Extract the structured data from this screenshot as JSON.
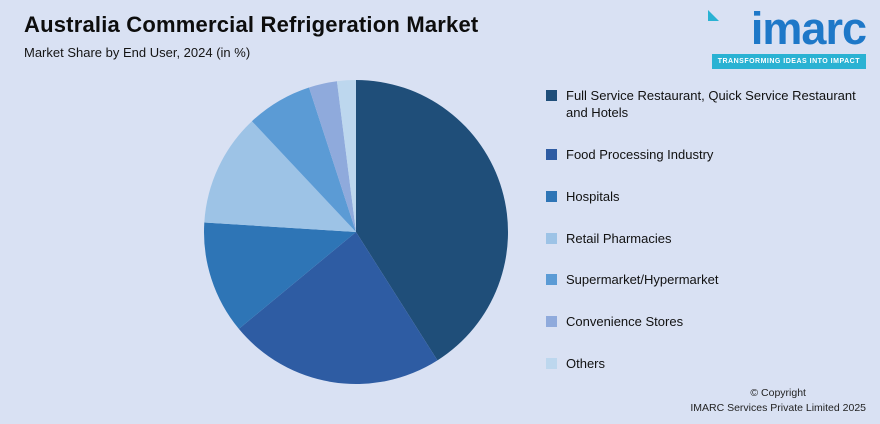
{
  "page": {
    "background": "#d9e1f3"
  },
  "header": {
    "title": "Australia Commercial Refrigeration Market",
    "subtitle": "Market Share by End User, 2024 (in %)"
  },
  "brand": {
    "name": "imarc",
    "tagline": "TRANSFORMING IDEAS INTO IMPACT",
    "text_color": "#1e78c8",
    "accent_color": "#2ab2d3"
  },
  "chart_data": {
    "type": "pie",
    "title": "Australia Commercial Refrigeration Market",
    "subtitle": "Market Share by End User, 2024 (in %)",
    "unit": "%",
    "legend_position": "right",
    "start_angle_deg": 0,
    "direction": "clockwise",
    "labels": [
      "Full Service Restaurant, Quick Service Restaurant and Hotels",
      "Food Processing Industry",
      "Hospitals",
      "Retail Pharmacies",
      "Supermarket/Hypermarket",
      "Convenience Stores",
      "Others"
    ],
    "values": [
      41,
      23,
      12,
      12,
      7,
      3,
      2
    ],
    "colors": [
      "#1F4E79",
      "#2E5CA3",
      "#2E75B6",
      "#9DC3E6",
      "#5B9BD5",
      "#8FAADC",
      "#BDD7EE"
    ]
  },
  "footer": {
    "copyright_line1": "© Copyright",
    "copyright_line2": "IMARC Services Private Limited 2025"
  }
}
